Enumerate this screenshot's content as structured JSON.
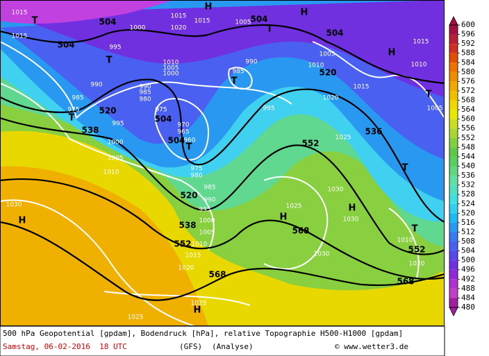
{
  "colorbar": {
    "ticks": [
      600,
      596,
      592,
      588,
      584,
      580,
      576,
      572,
      568,
      564,
      560,
      556,
      552,
      548,
      544,
      540,
      536,
      532,
      528,
      524,
      520,
      516,
      512,
      508,
      504,
      500,
      496,
      492,
      488,
      484,
      480
    ],
    "colors": [
      "#a01040",
      "#b82038",
      "#d03020",
      "#e05000",
      "#f07000",
      "#f08c00",
      "#f0a800",
      "#f0c000",
      "#f0d800",
      "#e8e800",
      "#c8e020",
      "#a8d830",
      "#80d040",
      "#60c848",
      "#58d060",
      "#60d880",
      "#60e0a0",
      "#50e0c0",
      "#40e0e0",
      "#30d0f0",
      "#20b8f0",
      "#2898f0",
      "#3878f0",
      "#4860f0",
      "#5848e8",
      "#7030e0",
      "#9028d8",
      "#b030d0",
      "#c040c8",
      "#a020a0"
    ]
  },
  "map": {
    "labels": [
      "504",
      "504",
      "504",
      "504",
      "520",
      "520",
      "538",
      "504",
      "504",
      "552",
      "536",
      "520",
      "538",
      "552",
      "568",
      "568",
      "552",
      "568",
      "T",
      "T",
      "T",
      "H",
      "H",
      "H",
      "T",
      "T",
      "T",
      "T",
      "T",
      "H",
      "H",
      "H",
      "T",
      "H",
      "1015",
      "1015",
      "1000",
      "1015",
      "1020",
      "1015",
      "1005",
      "995",
      "1010",
      "1005",
      "1000",
      "990",
      "990",
      "985",
      "980",
      "985",
      "990",
      "1005",
      "1010",
      "1015",
      "1015",
      "1010",
      "1005",
      "1020",
      "1025",
      "995",
      "985",
      "975",
      "995",
      "1000",
      "1005",
      "1010",
      "975",
      "970",
      "965",
      "960",
      "975",
      "980",
      "985",
      "990",
      "995",
      "1000",
      "1005",
      "1010",
      "1015",
      "1020",
      "1030",
      "1025",
      "1030",
      "1030",
      "1010",
      "1020",
      "1030",
      "1025",
      "1025"
    ]
  },
  "footer": {
    "title": "500 hPa Geopotential [gpdam], Bodendruck [hPa], relative Topographie H500-H1000 [gpdam]",
    "date": "Samstag, 06-02-2016  18 UTC",
    "model": "(GFS)",
    "run": "(Analyse)",
    "credit": "© www.wetter3.de"
  }
}
